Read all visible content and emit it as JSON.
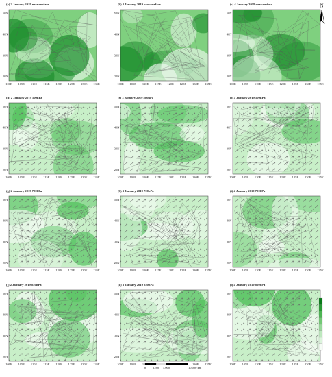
{
  "panels": [
    {
      "title": "(a) 2 January 2019 near-surface"
    },
    {
      "title": "(b) 3 January 2019 near-surface"
    },
    {
      "title": "(c) 4 January 2019 near-surface"
    },
    {
      "title": "(d) 2 January 2019 500hPa"
    },
    {
      "title": "(e) 3 January 2019 500hPa"
    },
    {
      "title": "(f) 4 January 2019 500hPa"
    },
    {
      "title": "(g) 2 January 2019 700hPa"
    },
    {
      "title": "(h) 3 January 2019 700hPa"
    },
    {
      "title": "(i) 4 January 2019 700hPa"
    },
    {
      "title": "(j) 2 January 2019 850hPa"
    },
    {
      "title": "(k) 3 January 2019 850hPa"
    },
    {
      "title": "(l) 4 January 2019 850hPa"
    }
  ],
  "lon_labels": [
    "100E",
    "105E",
    "110E",
    "115E",
    "120E",
    "125E",
    "130E",
    "135E"
  ],
  "lat_labels": [
    "50N",
    "40N",
    "30N",
    "20N"
  ],
  "north": "N",
  "scale_bar": [
    "0",
    "2,500",
    "5,000",
    "10,000 km"
  ]
}
